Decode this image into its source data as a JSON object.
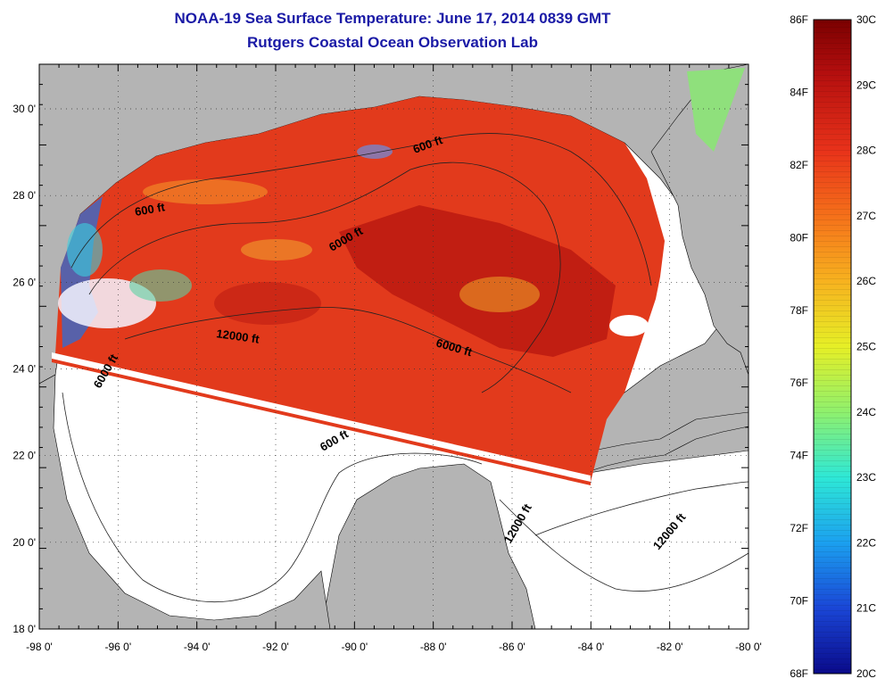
{
  "header": {
    "title": "NOAA-19 Sea Surface Temperature:  June 17, 2014 0839 GMT",
    "subtitle": "Rutgers Coastal Ocean Observation Lab"
  },
  "map": {
    "x_ticks": [
      "-98 0'",
      "-96 0'",
      "-94 0'",
      "-92 0'",
      "-90 0'",
      "-88 0'",
      "-86 0'",
      "-84 0'",
      "-82 0'",
      "-80 0'"
    ],
    "y_ticks": [
      "30 0'",
      "28 0'",
      "26 0'",
      "24 0'",
      "22 0'",
      "20 0'",
      "18 0'"
    ],
    "contour_labels": [
      "600 ft",
      "600 ft",
      "6000 ft",
      "12000 ft",
      "6000 ft",
      "6000 ft",
      "600 ft",
      "12000 ft",
      "12000 ft"
    ]
  },
  "colorbar": {
    "fahrenheit_labels": [
      "86F",
      "84F",
      "82F",
      "80F",
      "78F",
      "76F",
      "74F",
      "72F",
      "70F",
      "68F"
    ],
    "celsius_labels": [
      "30C",
      "29C",
      "28C",
      "27C",
      "26C",
      "25C",
      "24C",
      "23C",
      "22C",
      "21C",
      "20C"
    ]
  },
  "colors": {
    "title": "#1a1aa6",
    "land": "#b4b4b4",
    "water": "#ffffff",
    "sst_warm": "#e23a1c",
    "sst_hot": "#b5150f",
    "sst_cool": "#2a6fd8"
  }
}
